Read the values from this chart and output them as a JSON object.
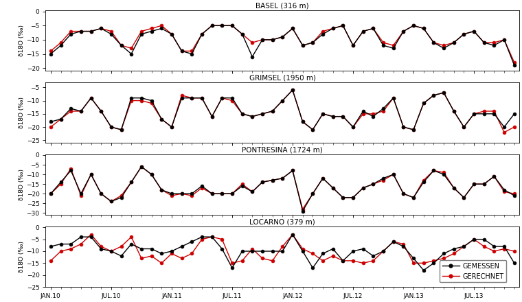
{
  "stations": [
    {
      "title": "BASEL (316 m)",
      "ylim": [
        -21,
        0.5
      ],
      "yticks": [
        0,
        -5,
        -10,
        -15,
        -20
      ],
      "measured": [
        -15,
        -12,
        -8,
        -7,
        -7,
        -6,
        -8,
        -12,
        -15,
        -8,
        -7,
        -6,
        -8,
        -14,
        -15,
        -8,
        -5,
        -5,
        -5,
        -8,
        -16,
        -10,
        -10,
        -9,
        -6,
        -12,
        -11,
        -8,
        -6,
        -5,
        -12,
        -7,
        -6,
        -12,
        -13,
        -7,
        -5,
        -6,
        -11,
        -13,
        -11,
        -8,
        -7,
        -11,
        -12,
        -10,
        -19
      ],
      "calculated": [
        -14,
        -11,
        -7,
        -7,
        -7,
        -6,
        -7,
        -12,
        -13,
        -7,
        -6,
        -5,
        -8,
        -14,
        -14,
        -8,
        -5,
        -5,
        -5,
        -8,
        -11,
        -10,
        -10,
        -9,
        -6,
        -12,
        -11,
        -7,
        -6,
        -5,
        -12,
        -7,
        -6,
        -11,
        -12,
        -7,
        -5,
        -6,
        -11,
        -12,
        -11,
        -8,
        -7,
        -11,
        -11,
        -10,
        -18
      ]
    },
    {
      "title": "GRIMSEL (1950 m)",
      "ylim": [
        -26,
        -3
      ],
      "yticks": [
        -5,
        -10,
        -15,
        -20,
        -25
      ],
      "measured": [
        -18,
        -17,
        -13,
        -14,
        -9,
        -14,
        -20,
        -21,
        -9,
        -9,
        -10,
        -17,
        -20,
        -9,
        -9,
        -9,
        -16,
        -9,
        -9,
        -15,
        -16,
        -15,
        -14,
        -10,
        -6,
        -18,
        -21,
        -15,
        -16,
        -16,
        -20,
        -14,
        -16,
        -13,
        -9,
        -20,
        -21,
        -11,
        -8,
        -7,
        -14,
        -20,
        -15,
        -15,
        -15,
        -20,
        -15
      ],
      "calculated": [
        -20,
        -17,
        -14,
        -14,
        -9,
        -14,
        -20,
        -21,
        -10,
        -10,
        -11,
        -17,
        -20,
        -8,
        -9,
        -9,
        -16,
        -9,
        -10,
        -15,
        -16,
        -15,
        -14,
        -10,
        -6,
        -18,
        -21,
        -15,
        -16,
        -16,
        -20,
        -15,
        -15,
        -14,
        -9,
        -20,
        -21,
        -11,
        -8,
        -7,
        -14,
        -20,
        -15,
        -14,
        -14,
        -22,
        -20
      ]
    },
    {
      "title": "PONTRESINA (1724 m)",
      "ylim": [
        -31,
        0.5
      ],
      "yticks": [
        0,
        -5,
        -10,
        -15,
        -20,
        -25,
        -30
      ],
      "measured": [
        -20,
        -14,
        -8,
        -20,
        -10,
        -20,
        -24,
        -22,
        -14,
        -6,
        -10,
        -18,
        -20,
        -20,
        -20,
        -16,
        -20,
        -20,
        -20,
        -16,
        -19,
        -14,
        -13,
        -12,
        -8,
        -29,
        -20,
        -12,
        -17,
        -22,
        -22,
        -17,
        -15,
        -12,
        -10,
        -20,
        -22,
        -14,
        -8,
        -10,
        -17,
        -22,
        -15,
        -15,
        -11,
        -18,
        -21
      ],
      "calculated": [
        -20,
        -15,
        -7,
        -21,
        -10,
        -20,
        -24,
        -21,
        -14,
        -6,
        -10,
        -18,
        -21,
        -20,
        -21,
        -17,
        -20,
        -20,
        -20,
        -15,
        -19,
        -14,
        -13,
        -12,
        -8,
        -28,
        -20,
        -12,
        -17,
        -22,
        -22,
        -17,
        -15,
        -13,
        -10,
        -20,
        -22,
        -13,
        -8,
        -9,
        -17,
        -22,
        -15,
        -15,
        -11,
        -19,
        -20
      ]
    },
    {
      "title": "LOCARNO (379 m)",
      "ylim": [
        -25,
        0.5
      ],
      "yticks": [
        0,
        -5,
        -10,
        -15,
        -20,
        -25
      ],
      "measured": [
        -8,
        -7,
        -7,
        -4,
        -4,
        -9,
        -10,
        -12,
        -7,
        -9,
        -9,
        -11,
        -10,
        -8,
        -6,
        -4,
        -4,
        -9,
        -17,
        -10,
        -10,
        -10,
        -10,
        -10,
        -3,
        -10,
        -17,
        -11,
        -9,
        -14,
        -10,
        -9,
        -12,
        -10,
        -6,
        -8,
        -13,
        -18,
        -15,
        -11,
        -9,
        -8,
        -5,
        -5,
        -8,
        -8,
        -15
      ],
      "calculated": [
        -14,
        -10,
        -9,
        -7,
        -3,
        -8,
        -10,
        -8,
        -4,
        -13,
        -12,
        -15,
        -11,
        -13,
        -11,
        -5,
        -4,
        -5,
        -15,
        -14,
        -9,
        -13,
        -14,
        -8,
        -3,
        -9,
        -11,
        -14,
        -12,
        -14,
        -14,
        -15,
        -14,
        -10,
        -6,
        -7,
        -15,
        -15,
        -14,
        -13,
        -11,
        -8,
        -5,
        -8,
        -10,
        -9,
        -10
      ]
    }
  ],
  "x_ticks_labels": [
    "JAN.10",
    "JUL.10",
    "JAN.11",
    "JUL.11",
    "JAN.12",
    "JUL.12",
    "JAN.13",
    "JUL.13"
  ],
  "x_ticks_pos": [
    0,
    6,
    12,
    18,
    24,
    30,
    36,
    42
  ],
  "n_points": 47,
  "measured_color": "#000000",
  "calculated_color": "#cc0000",
  "line_width": 1.0,
  "marker_size": 3.5,
  "legend_labels": [
    "GEMESSEN",
    "GERECHNET"
  ],
  "ylabel": "δ18O (‰)",
  "plot_bg": "#ffffff",
  "fig_bg": "#ffffff",
  "title_fontsize": 7.5,
  "axis_fontsize": 6.5,
  "tick_fontsize": 6.5,
  "legend_fontsize": 7
}
